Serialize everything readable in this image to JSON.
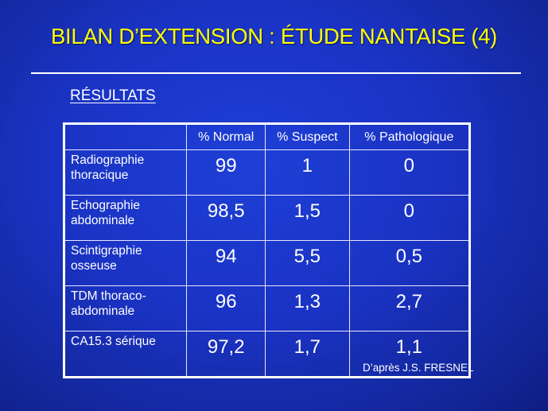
{
  "slide": {
    "title": "BILAN D’EXTENSION : ÉTUDE NANTAISE (4)",
    "subtitle": "RÉSULTATS",
    "source": "D’après J.S. FRESNEL",
    "colors": {
      "background": "#1a33c4",
      "title": "#ffff00",
      "text": "#ffffff"
    }
  },
  "table": {
    "corner": "",
    "headers": [
      "% Normal",
      "% Suspect",
      "% Pathologique"
    ],
    "rows": [
      {
        "label_line1": "Radiographie",
        "label_line2": "thoracique",
        "normal": "99",
        "suspect": "1",
        "pathologique": "0"
      },
      {
        "label_line1": "Echographie",
        "label_line2": "abdominale",
        "normal": "98,5",
        "suspect": "1,5",
        "pathologique": "0"
      },
      {
        "label_line1": "Scintigraphie",
        "label_line2": "osseuse",
        "normal": "94",
        "suspect": "5,5",
        "pathologique": "0,5"
      },
      {
        "label_line1": "TDM thoraco-",
        "label_line2": "abdominale",
        "normal": "96",
        "suspect": "1,3",
        "pathologique": "2,7"
      },
      {
        "label_line1": "CA15.3 sérique",
        "label_line2": "",
        "normal": "97,2",
        "suspect": "1,7",
        "pathologique": "1,1"
      }
    ]
  }
}
